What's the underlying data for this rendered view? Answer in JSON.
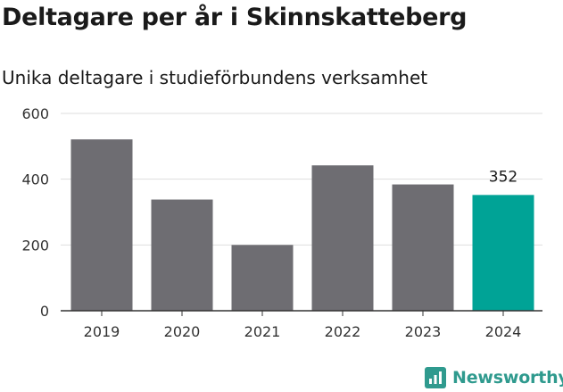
{
  "chart_data": {
    "type": "bar",
    "title": "Deltagare per år i Skinnskatteberg",
    "subtitle": "Unika deltagare i studieförbundens verksamhet",
    "categories": [
      "2019",
      "2020",
      "2021",
      "2022",
      "2023",
      "2024"
    ],
    "values": [
      521,
      338,
      200,
      442,
      384,
      352
    ],
    "data_labels": [
      null,
      null,
      null,
      null,
      null,
      "352"
    ],
    "ylim": [
      0,
      600
    ],
    "yticks": [
      0,
      200,
      400,
      600
    ],
    "grid": true,
    "legend": "none",
    "colors": {
      "bar": "#6e6d72",
      "highlight": "#00a396",
      "grid": "#dedede",
      "axis": "#333333"
    },
    "highlight_index": 5
  },
  "brand": {
    "name": "Newsworthy",
    "icon": "newsworthy-logo-icon",
    "color": "#2f9a8e"
  }
}
